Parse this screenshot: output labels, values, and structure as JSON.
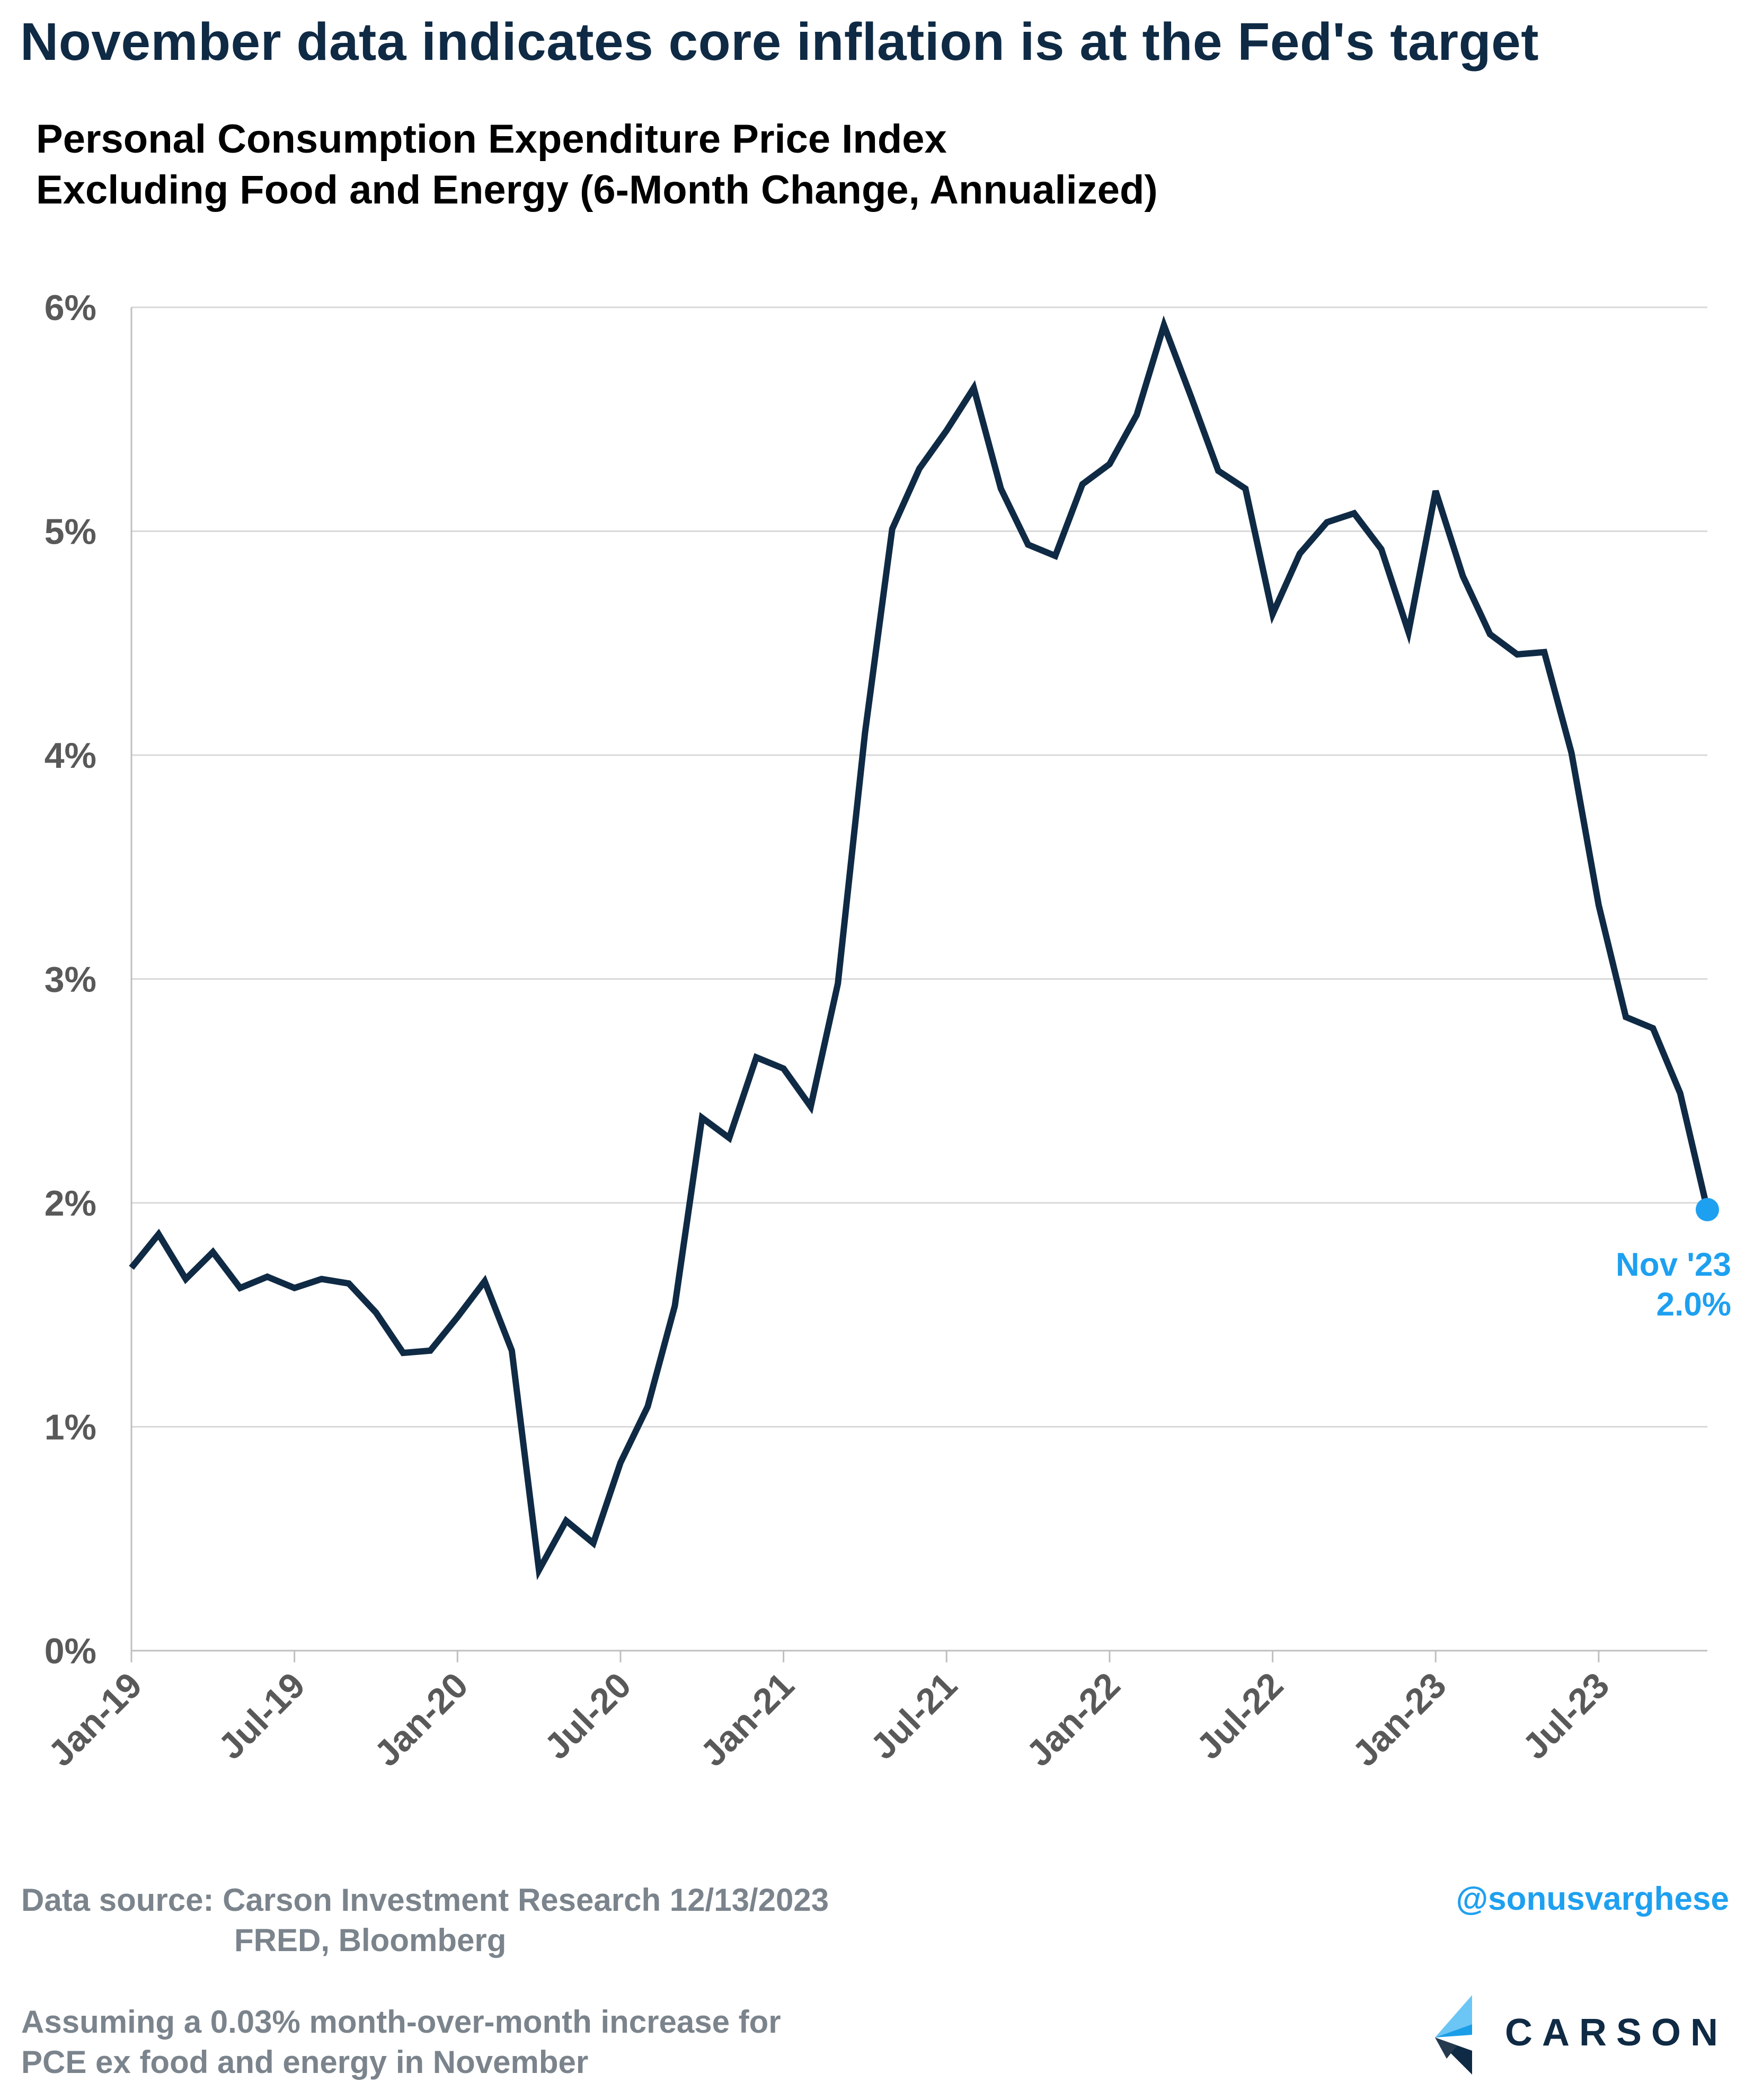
{
  "title": "November data indicates core inflation is at the Fed's target",
  "subtitle": {
    "line1": "Personal Consumption Expenditure Price Index",
    "line2": "Excluding Food and Energy (6-Month Change, Annualized)"
  },
  "chart_data": {
    "type": "line",
    "ylim": [
      0,
      6
    ],
    "ytick_labels": [
      "0%",
      "1%",
      "2%",
      "3%",
      "4%",
      "5%",
      "6%"
    ],
    "xtick_labels": [
      "Jan-19",
      "Jul-19",
      "Jan-20",
      "Jul-20",
      "Jan-21",
      "Jul-21",
      "Jan-22",
      "Jul-22",
      "Jan-23",
      "Jul-23"
    ],
    "grid": true,
    "series": [
      {
        "color": "#0f2a44",
        "x": [
          "2019-01",
          "2019-02",
          "2019-03",
          "2019-04",
          "2019-05",
          "2019-06",
          "2019-07",
          "2019-08",
          "2019-09",
          "2019-10",
          "2019-11",
          "2019-12",
          "2020-01",
          "2020-02",
          "2020-03",
          "2020-04",
          "2020-05",
          "2020-06",
          "2020-07",
          "2020-08",
          "2020-09",
          "2020-10",
          "2020-11",
          "2020-12",
          "2021-01",
          "2021-02",
          "2021-03",
          "2021-04",
          "2021-05",
          "2021-06",
          "2021-07",
          "2021-08",
          "2021-09",
          "2021-10",
          "2021-11",
          "2021-12",
          "2022-01",
          "2022-02",
          "2022-03",
          "2022-04",
          "2022-05",
          "2022-06",
          "2022-07",
          "2022-08",
          "2022-09",
          "2022-10",
          "2022-11",
          "2022-12",
          "2023-01",
          "2023-02",
          "2023-03",
          "2023-04",
          "2023-05",
          "2023-06",
          "2023-07",
          "2023-08",
          "2023-09",
          "2023-10",
          "2023-11"
        ],
        "values": [
          1.71,
          1.86,
          1.66,
          1.78,
          1.62,
          1.67,
          1.62,
          1.66,
          1.64,
          1.51,
          1.33,
          1.34,
          1.49,
          1.65,
          1.34,
          0.36,
          0.58,
          0.48,
          0.84,
          1.09,
          1.54,
          2.38,
          2.29,
          2.65,
          2.6,
          2.43,
          2.98,
          4.1,
          5.01,
          5.28,
          5.45,
          5.64,
          5.19,
          4.94,
          4.89,
          5.21,
          5.3,
          5.52,
          5.92,
          5.6,
          5.27,
          5.19,
          4.63,
          4.9,
          5.04,
          5.08,
          4.92,
          4.55,
          5.18,
          4.8,
          4.54,
          4.45,
          4.46,
          4.01,
          3.33,
          2.83,
          2.78,
          2.49,
          1.97
        ]
      }
    ],
    "highlight": {
      "x": "2023-11",
      "value": 1.97,
      "label_line1": "Nov '23",
      "label_line2": "2.0%",
      "color": "#1ea0f0"
    }
  },
  "footer": {
    "source_line1": "Data source: Carson Investment Research  12/13/2023",
    "source_line2": "FRED, Bloomberg",
    "assumption_line1": "Assuming a 0.03% month-over-month increase for",
    "assumption_line2": "PCE ex food and energy in November",
    "handle": "@sonusvarghese",
    "logo_text": "CARSON"
  }
}
